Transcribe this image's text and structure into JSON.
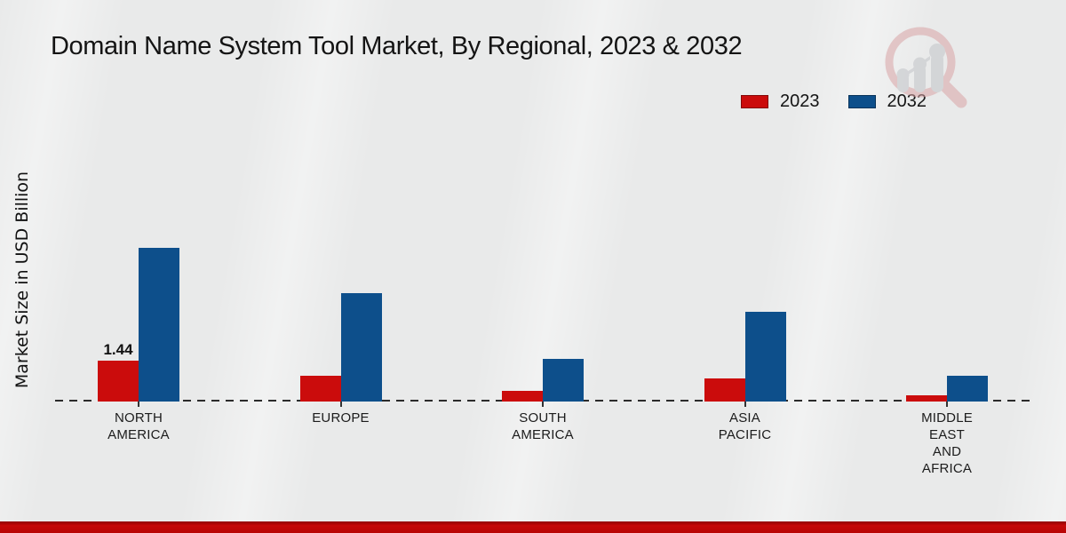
{
  "page": {
    "background_color": "#e9eaea",
    "footer_bar_color": "#b80505"
  },
  "watermark": {
    "name": "magnifier-growth-chart-logo",
    "ring_color": "#d9a4a6",
    "bars_color": "#c2c4c8"
  },
  "chart_data": {
    "type": "bar",
    "title": "Domain Name System Tool Market, By Regional, 2023 & 2032",
    "ylabel": "Market Size in USD Billion",
    "xlabel": "",
    "legend_position": "top-right",
    "baseline_style": "dashed",
    "grid": false,
    "ylim": [
      0,
      6
    ],
    "categories": [
      "NORTH AMERICA",
      "EUROPE",
      "SOUTH AMERICA",
      "ASIA PACIFIC",
      "MIDDLE EAST AND AFRICA"
    ],
    "category_lines": [
      [
        "NORTH",
        "AMERICA"
      ],
      [
        "EUROPE"
      ],
      [
        "SOUTH",
        "AMERICA"
      ],
      [
        "ASIA",
        "PACIFIC"
      ],
      [
        "MIDDLE",
        "EAST",
        "AND",
        "AFRICA"
      ]
    ],
    "series": [
      {
        "name": "2023",
        "color": "#cb0c0c",
        "values": [
          1.44,
          0.91,
          0.38,
          0.81,
          0.23
        ],
        "data_labels": [
          "1.44",
          "",
          "",
          "",
          ""
        ]
      },
      {
        "name": "2032",
        "color": "#0d4f8b",
        "values": [
          5.42,
          3.81,
          1.5,
          3.16,
          0.91
        ],
        "data_labels": [
          "",
          "",
          "",
          "",
          ""
        ]
      }
    ]
  }
}
